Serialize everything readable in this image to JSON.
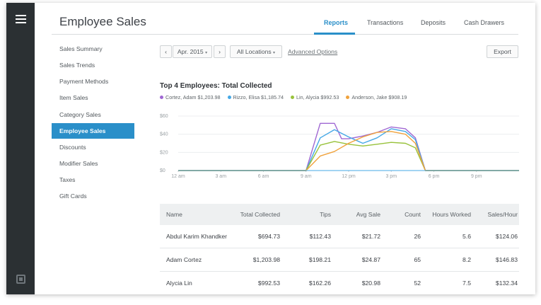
{
  "page": {
    "title": "Employee Sales"
  },
  "tabs": [
    {
      "label": "Reports",
      "active": true
    },
    {
      "label": "Transactions",
      "active": false
    },
    {
      "label": "Deposits",
      "active": false
    },
    {
      "label": "Cash Drawers",
      "active": false
    }
  ],
  "sidebar": {
    "items": [
      {
        "label": "Sales Summary",
        "active": false
      },
      {
        "label": "Sales Trends",
        "active": false
      },
      {
        "label": "Payment Methods",
        "active": false
      },
      {
        "label": "Item Sales",
        "active": false
      },
      {
        "label": "Category Sales",
        "active": false
      },
      {
        "label": "Employee Sales",
        "active": true
      },
      {
        "label": "Discounts",
        "active": false
      },
      {
        "label": "Modifier Sales",
        "active": false
      },
      {
        "label": "Taxes",
        "active": false
      },
      {
        "label": "Gift Cards",
        "active": false
      }
    ]
  },
  "toolbar": {
    "prev": "‹",
    "next": "›",
    "date": "Apr. 2015",
    "locations": "All Locations",
    "advanced": "Advanced Options",
    "export": "Export"
  },
  "chart": {
    "title": "Top 4 Employees: Total Collected"
  },
  "chart_data": {
    "type": "line",
    "title": "Top 4 Employees: Total Collected",
    "legend_position": "top-left",
    "x_ticks": [
      "12 am",
      "3 am",
      "6 am",
      "9 am",
      "12 pm",
      "3 pm",
      "6 pm",
      "9 pm"
    ],
    "y_ticks": [
      "$60",
      "$40",
      "$20",
      "$0"
    ],
    "ylim": [
      0,
      60
    ],
    "xlim": [
      0,
      24
    ],
    "grid": true,
    "series": [
      {
        "name": "Cortez, Adam",
        "total": "$1,203.98",
        "color": "#a068d3",
        "points": [
          [
            0,
            0
          ],
          [
            9,
            0
          ],
          [
            10,
            52
          ],
          [
            11,
            52
          ],
          [
            11.5,
            35
          ],
          [
            12,
            35
          ],
          [
            13,
            38
          ],
          [
            14,
            42
          ],
          [
            15,
            48
          ],
          [
            16,
            46
          ],
          [
            16.7,
            36
          ],
          [
            17.4,
            0
          ],
          [
            24,
            0
          ]
        ]
      },
      {
        "name": "Rizzo, Elisa",
        "total": "$1,185.74",
        "color": "#45a8e6",
        "points": [
          [
            0,
            0
          ],
          [
            9,
            0
          ],
          [
            10,
            36
          ],
          [
            11,
            45
          ],
          [
            12,
            37
          ],
          [
            13,
            30
          ],
          [
            14,
            36
          ],
          [
            15,
            46
          ],
          [
            16,
            43
          ],
          [
            16.7,
            34
          ],
          [
            17.4,
            0
          ],
          [
            24,
            0
          ]
        ]
      },
      {
        "name": "Lin, Alycia",
        "total": "$992.53",
        "color": "#98c23b",
        "points": [
          [
            0,
            0
          ],
          [
            9,
            0
          ],
          [
            10,
            28
          ],
          [
            11,
            32
          ],
          [
            12,
            29
          ],
          [
            13,
            27
          ],
          [
            14,
            29
          ],
          [
            15,
            31
          ],
          [
            16,
            30
          ],
          [
            16.7,
            25
          ],
          [
            17.4,
            0
          ],
          [
            24,
            0
          ]
        ]
      },
      {
        "name": "Anderson, Jake",
        "total": "$908.19",
        "color": "#f0a23c",
        "points": [
          [
            0,
            0
          ],
          [
            9,
            0
          ],
          [
            10,
            16
          ],
          [
            11,
            21
          ],
          [
            12,
            30
          ],
          [
            13,
            37
          ],
          [
            14,
            42
          ],
          [
            15,
            43
          ],
          [
            16,
            40
          ],
          [
            16.7,
            30
          ],
          [
            17.4,
            0
          ],
          [
            24,
            0
          ]
        ]
      }
    ]
  },
  "table": {
    "headers": [
      "Name",
      "Total Collected",
      "Tips",
      "Avg Sale",
      "Count",
      "Hours Worked",
      "Sales/Hour"
    ],
    "rows": [
      [
        "Abdul Karim Khandker",
        "$694.73",
        "$112.43",
        "$21.72",
        "26",
        "5.6",
        "$124.06"
      ],
      [
        "Adam Cortez",
        "$1,203.98",
        "$198.21",
        "$24.87",
        "65",
        "8.2",
        "$146.83"
      ],
      [
        "Alycia Lin",
        "$992.53",
        "$162.26",
        "$20.98",
        "52",
        "7.5",
        "$132.34"
      ]
    ]
  }
}
